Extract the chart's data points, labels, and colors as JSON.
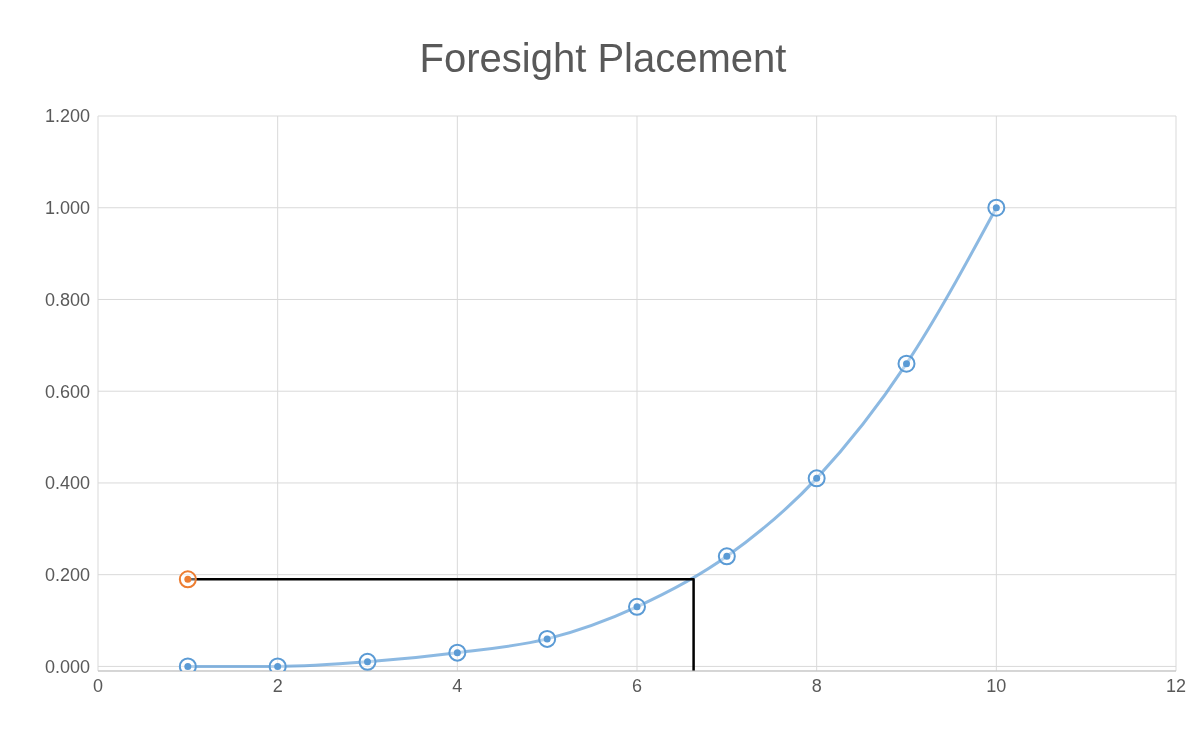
{
  "chart_data": {
    "type": "line",
    "title": "Foresight Placement",
    "series": [
      {
        "color": "#5b9bd5",
        "x": [
          1,
          2,
          3,
          4,
          5,
          6,
          7,
          8,
          9,
          10
        ],
        "values": [
          0,
          0,
          0.01,
          0.03,
          0.06,
          0.13,
          0.24,
          0.41,
          0.66,
          1.0
        ],
        "marker": "circle"
      },
      {
        "type": "scatter",
        "color": "#ed7d31",
        "x": [
          1
        ],
        "values": [
          0.19
        ],
        "marker": "circle"
      },
      {
        "type": "line",
        "color": "#000000",
        "x": [
          1,
          6.63,
          6.63
        ],
        "values": [
          0.19,
          0.19,
          -0.01
        ],
        "marker": "none"
      }
    ],
    "xlim": [
      0,
      12
    ],
    "xticks": [
      0,
      2,
      4,
      6,
      8,
      10,
      12
    ],
    "ylim": [
      -0.01,
      1.2
    ],
    "yticks": [
      {
        "value": 0,
        "label": "0.000"
      },
      {
        "value": 0.2,
        "label": "0.200"
      },
      {
        "value": 0.4,
        "label": "0.400"
      },
      {
        "value": 0.6,
        "label": "0.600"
      },
      {
        "value": 0.8,
        "label": "0.800"
      },
      {
        "value": 1,
        "label": "1.000"
      },
      {
        "value": 1.2,
        "label": "1.200"
      }
    ],
    "grid": true,
    "legend": false,
    "line_style": "solid"
  }
}
